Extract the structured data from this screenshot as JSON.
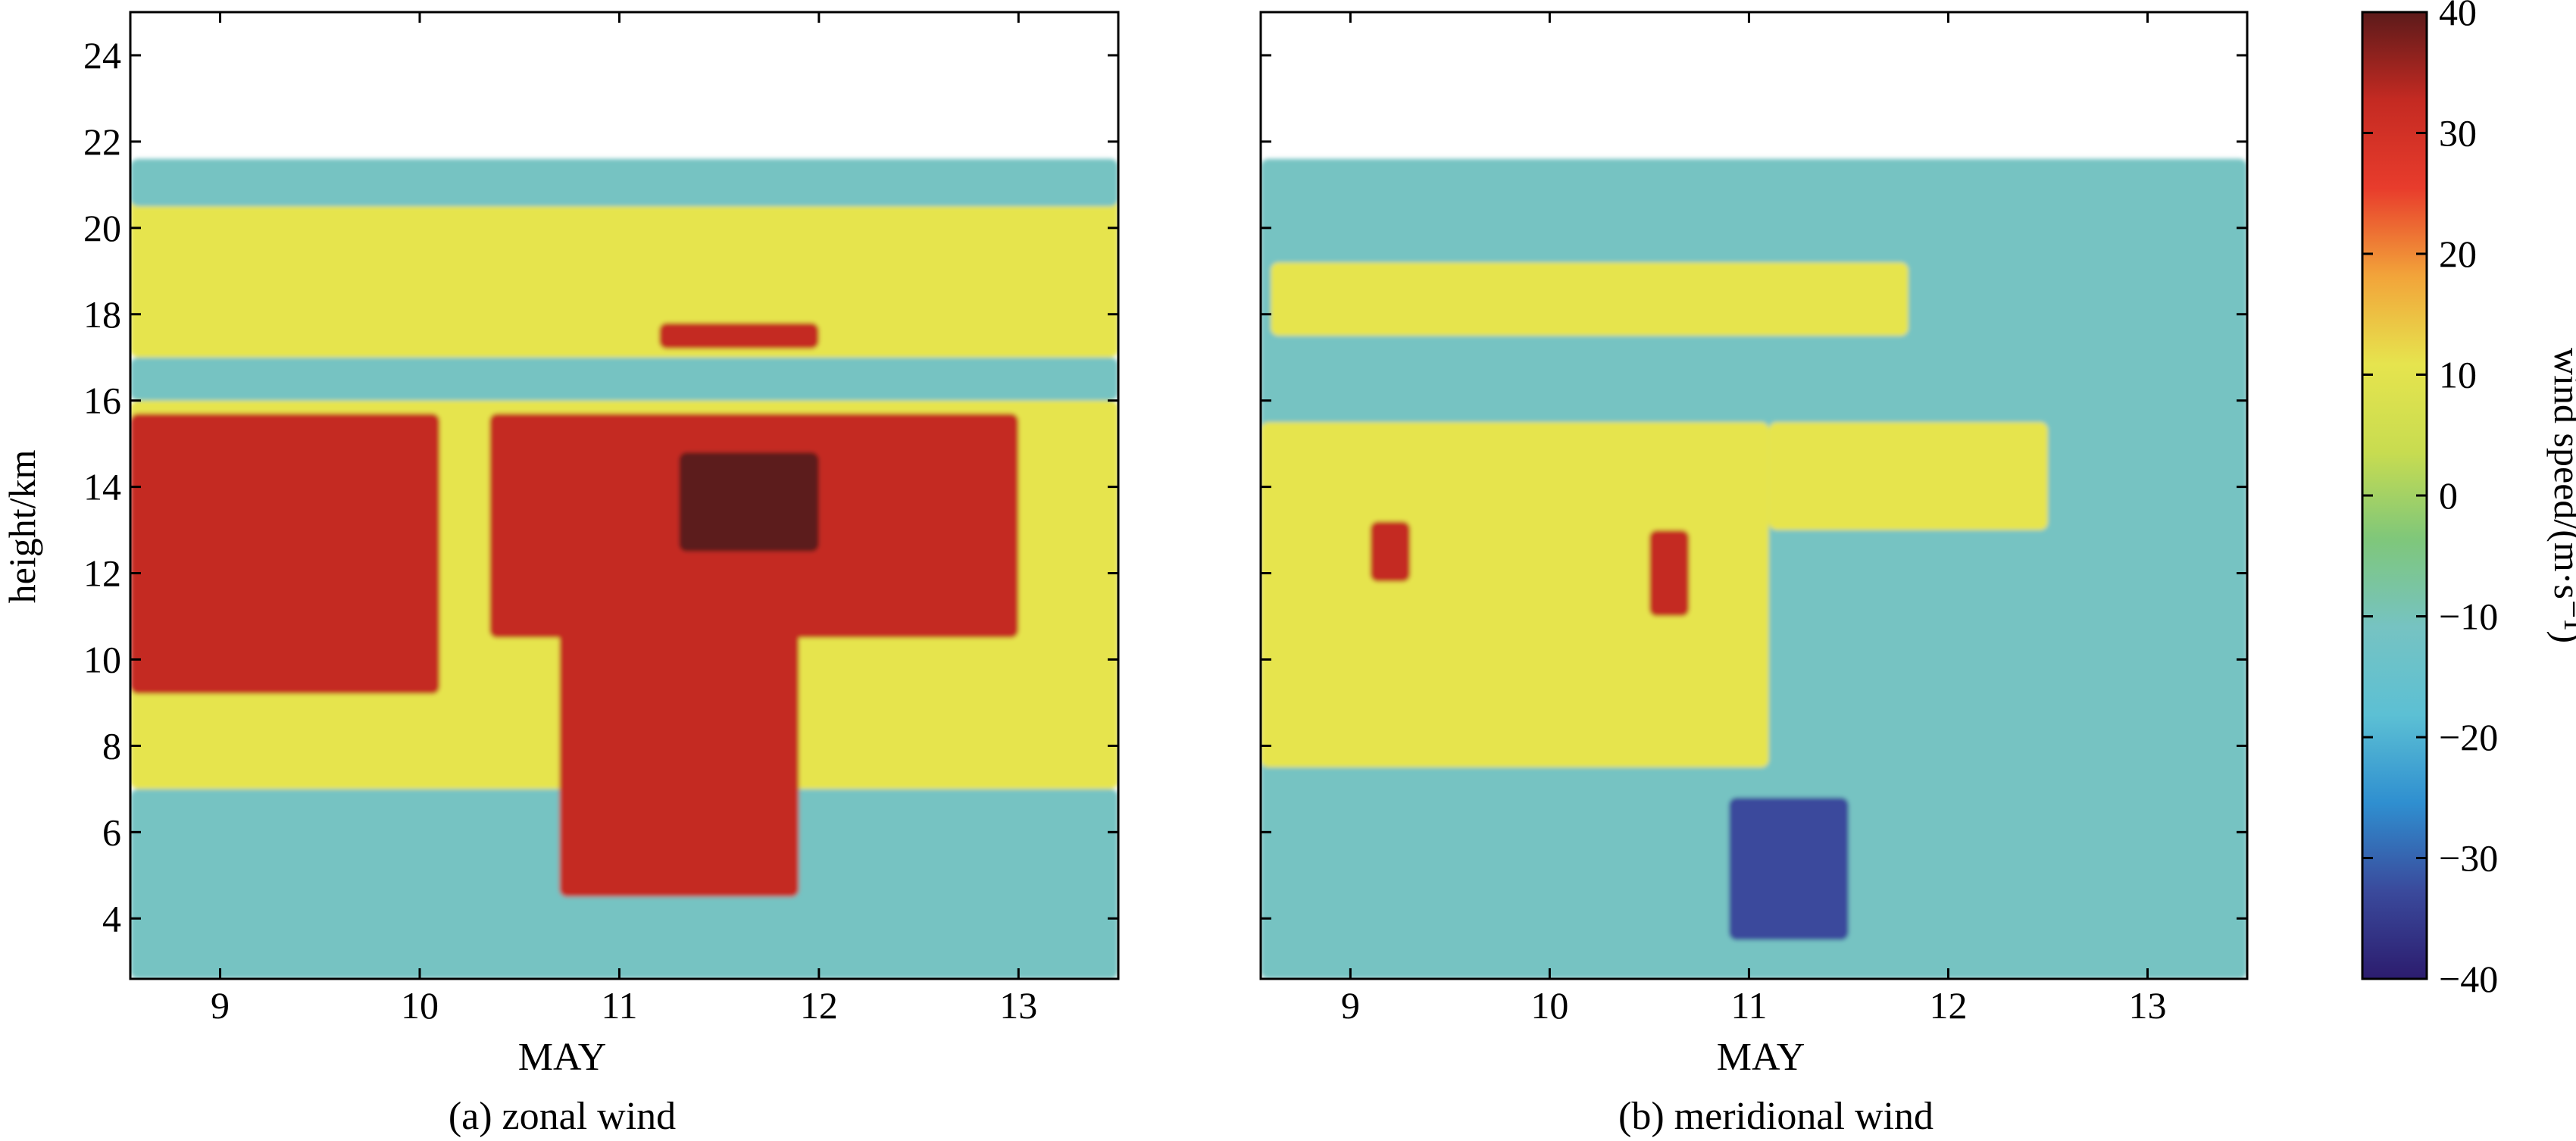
{
  "colorbar": {
    "label": "wind speed/(m·s⁻¹)",
    "ticks": [
      40,
      30,
      20,
      10,
      0,
      -10,
      -20,
      -30,
      -40
    ],
    "range": [
      -40,
      40
    ],
    "colors": [
      "#2c1c6e",
      "#3a4a9c",
      "#2f8fd0",
      "#5cc0d4",
      "#76c3c2",
      "#7fc77a",
      "#c8dc50",
      "#e6e44e",
      "#f2a43a",
      "#e83c2c",
      "#c42a22",
      "#5c1a1a"
    ]
  },
  "chart_data": [
    {
      "type": "heatmap",
      "caption": "(a) zonal wind",
      "xlabel": "MAY",
      "ylabel": "height/km",
      "xlim": [
        8.55,
        13.5
      ],
      "ylim": [
        2.6,
        25
      ],
      "xticks": [
        9,
        10,
        11,
        12,
        13
      ],
      "yticks": [
        4,
        6,
        8,
        10,
        12,
        14,
        16,
        18,
        20,
        22,
        24
      ],
      "regions": [
        {
          "name": "lower layer",
          "x": [
            8.55,
            13.5
          ],
          "y": [
            2.6,
            7
          ],
          "value": -8
        },
        {
          "name": "mid troposphere",
          "x": [
            8.55,
            13.5
          ],
          "y": [
            7,
            16
          ],
          "value": 10
        },
        {
          "name": "jet core 8.55–10.1 May",
          "x": [
            8.55,
            10.1
          ],
          "y": [
            9.2,
            15.7
          ],
          "value": 30
        },
        {
          "name": "jet core 10.35–13.0 May",
          "x": [
            10.35,
            13.0
          ],
          "y": [
            10.5,
            15.7
          ],
          "value": 30
        },
        {
          "name": "deep westerly 10.7–11.9 May",
          "x": [
            10.7,
            11.9
          ],
          "y": [
            4.5,
            11
          ],
          "value": 30
        },
        {
          "name": "maximum near 11.3–12.0 May",
          "x": [
            11.3,
            12.0
          ],
          "y": [
            12.5,
            14.8
          ],
          "value": 38
        },
        {
          "name": "layer at 16–17 km",
          "x": [
            8.55,
            13.5
          ],
          "y": [
            16,
            17
          ],
          "value": -8
        },
        {
          "name": "upper layer",
          "x": [
            8.55,
            13.5
          ],
          "y": [
            17,
            21.5
          ],
          "value": 10
        },
        {
          "name": "red patch at 17.5 km",
          "x": [
            11.2,
            12.0
          ],
          "y": [
            17.2,
            17.8
          ],
          "value": 30
        },
        {
          "name": "tropopause band",
          "x": [
            8.55,
            13.5
          ],
          "y": [
            20.5,
            21.6
          ],
          "value": -8
        }
      ]
    },
    {
      "type": "heatmap",
      "caption": "(b) meridional wind",
      "xlabel": "MAY",
      "ylabel": "",
      "xlim": [
        8.55,
        13.5
      ],
      "ylim": [
        2.6,
        25
      ],
      "xticks": [
        9,
        10,
        11,
        12,
        13
      ],
      "yticks": [
        4,
        6,
        8,
        10,
        12,
        14,
        16,
        18,
        20,
        22,
        24
      ],
      "regions": [
        {
          "name": "background",
          "x": [
            8.55,
            13.5
          ],
          "y": [
            2.6,
            21.6
          ],
          "value": -8
        },
        {
          "name": "mid layer 8.55–11.1 May",
          "x": [
            8.55,
            11.1
          ],
          "y": [
            7.5,
            15.5
          ],
          "value": 10
        },
        {
          "name": "mid layer 11.1–12.5 May",
          "x": [
            11.1,
            12.5
          ],
          "y": [
            13,
            15.5
          ],
          "value": 10
        },
        {
          "name": "layer at 18–19 km",
          "x": [
            8.6,
            11.8
          ],
          "y": [
            17.5,
            19.2
          ],
          "value": 10
        },
        {
          "name": "southward maximum 10.9–11.5 May",
          "x": [
            10.9,
            11.5
          ],
          "y": [
            3.5,
            6.8
          ],
          "value": -32
        },
        {
          "name": "red patch near 12.5 km",
          "x": [
            9.1,
            9.3
          ],
          "y": [
            11.8,
            13.2
          ],
          "value": 30
        },
        {
          "name": "red patch near 12 km",
          "x": [
            10.5,
            10.7
          ],
          "y": [
            11,
            13
          ],
          "value": 30
        }
      ]
    }
  ]
}
